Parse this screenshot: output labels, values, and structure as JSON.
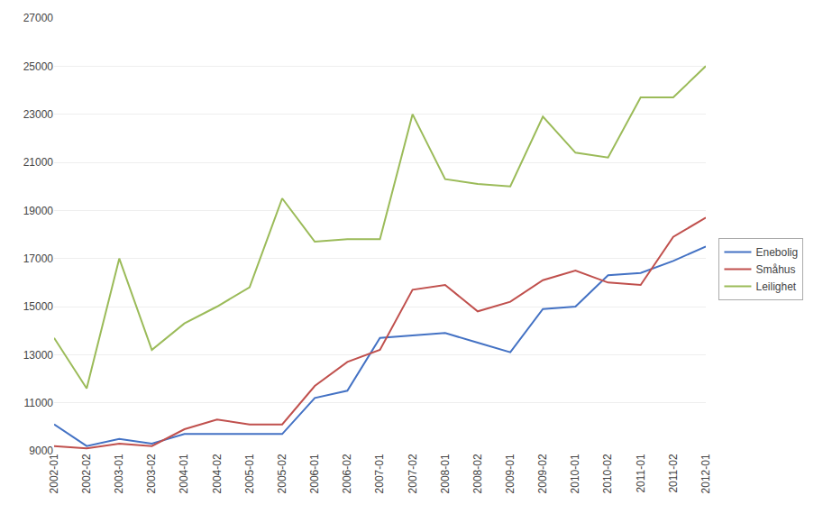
{
  "chart_data": {
    "type": "line",
    "categories": [
      "2002-01",
      "2002-02",
      "2003-01",
      "2003-02",
      "2004-01",
      "2004-02",
      "2005-01",
      "2005-02",
      "2006-01",
      "2006-02",
      "2007-01",
      "2007-02",
      "2008-01",
      "2008-02",
      "2009-01",
      "2009-02",
      "2010-01",
      "2010-02",
      "2011-01",
      "2011-02",
      "2012-01"
    ],
    "series": [
      {
        "name": "Enebolig",
        "color": "#4472C4",
        "values": [
          10100,
          9200,
          9500,
          9300,
          9700,
          9700,
          9700,
          9700,
          11200,
          11500,
          13700,
          13800,
          13900,
          13500,
          13100,
          14900,
          15000,
          16300,
          16400,
          16900,
          17500
        ]
      },
      {
        "name": "Småhus",
        "color": "#C0504D",
        "values": [
          9200,
          9100,
          9300,
          9200,
          9900,
          10300,
          10100,
          10100,
          11700,
          12700,
          13200,
          15700,
          15900,
          14800,
          15200,
          16100,
          16500,
          16000,
          15900,
          17900,
          18700
        ]
      },
      {
        "name": "Leilighet",
        "color": "#9BBB59",
        "values": [
          13700,
          11600,
          17000,
          13200,
          14300,
          15000,
          15800,
          19500,
          17700,
          17800,
          17800,
          23000,
          20300,
          20100,
          20000,
          22900,
          21400,
          21200,
          23700,
          23700,
          25000
        ]
      }
    ],
    "ylim": [
      9000,
      27000
    ],
    "yticks": [
      9000,
      11000,
      13000,
      15000,
      17000,
      19000,
      21000,
      23000,
      25000,
      27000
    ],
    "grid": true,
    "legend": "right"
  }
}
